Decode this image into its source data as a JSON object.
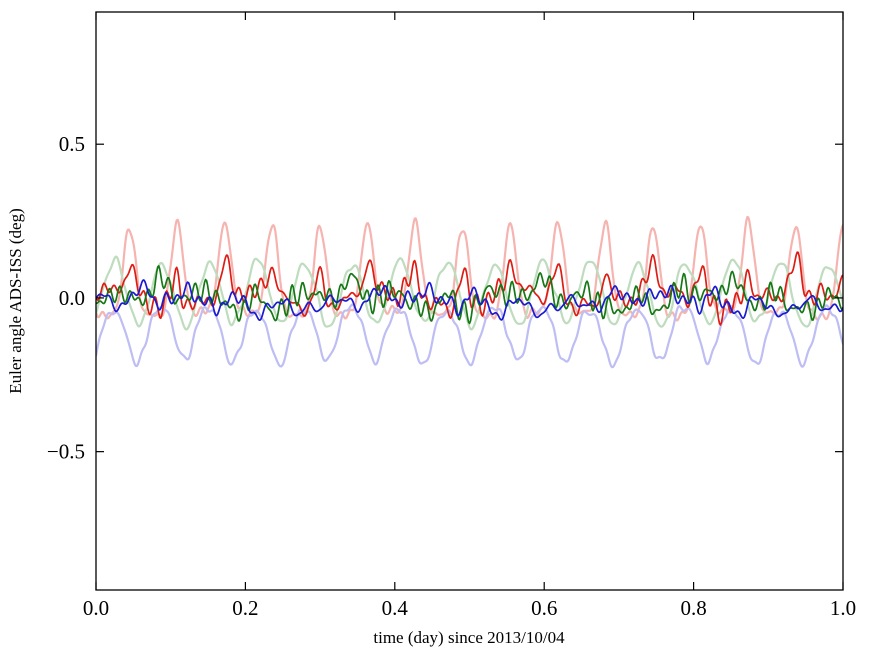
{
  "figure": {
    "background_color": "#ffffff",
    "frame_color": "#000000"
  },
  "chart_data": {
    "type": "line",
    "title": "",
    "xlabel": "time (day) since 2013/10/04",
    "ylabel": "Euler angle ADS-ISS (deg)",
    "xlim": [
      0.0,
      1.0
    ],
    "ylim": [
      -0.95,
      0.93
    ],
    "xticks": [
      0.0,
      0.2,
      0.4,
      0.6,
      0.8,
      1.0
    ],
    "xtick_labels": [
      "0.0",
      "0.2",
      "0.4",
      "0.6",
      "0.8",
      "1.0"
    ],
    "yticks": [
      -0.5,
      0.0,
      0.5
    ],
    "ytick_labels": [
      "−0.5",
      "0.0",
      "0.5"
    ],
    "grid": false,
    "legend": "none",
    "description": "Six Euler-angle time series over one day: three pale lines (light red, light green, light blue) oscillating once per orbit (~15.7 cycles/day) with amplitudes up to about ±0.2 deg, and three saturated lines (red, green, blue) of small noisy residuals within about ±0.1 deg of zero.",
    "cycles_per_day": 15.7,
    "series": [
      {
        "name": "light-red",
        "color": "#f6b4b0",
        "linewidth": 2.2,
        "freq": 15.7,
        "phase": 0.7935,
        "offset": -0.05,
        "amp": 0.29,
        "sharpness": 3.0,
        "noise_amp": 0.01,
        "seed": 11,
        "approx_min": -0.08,
        "approx_max": 0.24
      },
      {
        "name": "light-green",
        "color": "#bedcbe",
        "linewidth": 2.2,
        "freq": 15.7,
        "phase": 0.1075,
        "offset": -0.085,
        "amp": 0.2,
        "sharpness": 1.0,
        "noise_amp": 0.01,
        "seed": 22,
        "approx_min": -0.1,
        "approx_max": 0.13
      },
      {
        "name": "light-blue",
        "color": "#bebef4",
        "linewidth": 2.2,
        "freq": 15.7,
        "phase": 0.6365,
        "offset": -0.04,
        "amp": -0.17,
        "sharpness": 1.4,
        "noise_amp": 0.01,
        "seed": 33,
        "approx_min": -0.22,
        "approx_max": -0.02
      },
      {
        "name": "red",
        "color": "#dd1d14",
        "linewidth": 1.7,
        "freq": 15.7,
        "phase": 0.7935,
        "offset": -0.005,
        "amp": 0.1,
        "sharpness": 5.0,
        "noise_amp": 0.03,
        "seed": 44,
        "approx_min": -0.09,
        "approx_max": 0.13
      },
      {
        "name": "green",
        "color": "#157815",
        "linewidth": 1.7,
        "freq": 15.7,
        "phase": 0.15,
        "offset": -0.018,
        "amp": 0.05,
        "sharpness": 2.0,
        "noise_amp": 0.03,
        "seed": 55,
        "approx_min": -0.1,
        "approx_max": 0.08
      },
      {
        "name": "blue",
        "color": "#1a1ad0",
        "linewidth": 1.7,
        "freq": 15.7,
        "phase": 0.55,
        "offset": -0.028,
        "amp": 0.04,
        "sharpness": 2.0,
        "noise_amp": 0.022,
        "seed": 66,
        "approx_min": -0.1,
        "approx_max": 0.05
      }
    ]
  }
}
